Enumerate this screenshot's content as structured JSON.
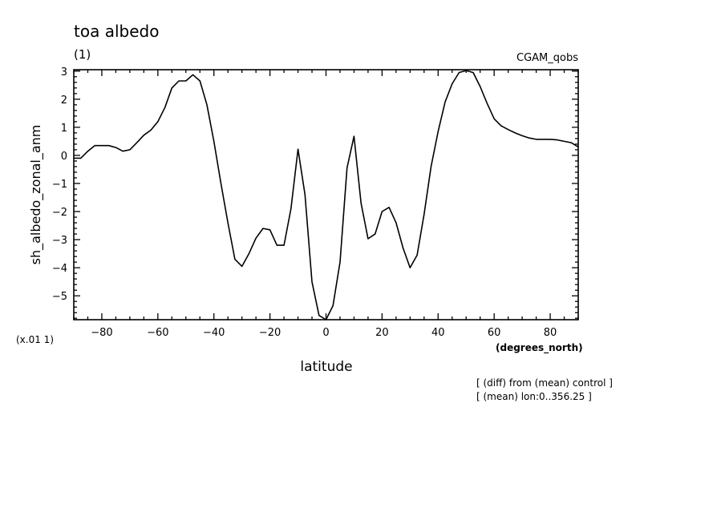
{
  "chart_data": {
    "type": "line",
    "title": "toa albedo",
    "subtitle": "(1)",
    "dataset_label": "CGAM_qobs",
    "xlabel": "latitude",
    "x_units": "(degrees_north)",
    "ylabel": "sh_albedo_zonal_anm",
    "y_scale_note": "(x.01 1)",
    "xlim": [
      -90,
      90
    ],
    "ylim": [
      -5.85,
      3.05
    ],
    "x_ticks": [
      -80,
      -60,
      -40,
      -20,
      0,
      20,
      40,
      60,
      80
    ],
    "x_tick_labels": [
      "−80",
      "−60",
      "−40",
      "−20",
      "0",
      "20",
      "40",
      "60",
      "80"
    ],
    "y_ticks": [
      3,
      2,
      1,
      0,
      -1,
      -2,
      -3,
      -4,
      -5
    ],
    "y_tick_labels": [
      "3",
      "2",
      "1",
      "0",
      "−1",
      "−2",
      "−3",
      "−4",
      "−5"
    ],
    "grid": false,
    "footnotes": [
      "[ (diff) from (mean) control ]",
      "[ (mean) lon:0..356.25 ]"
    ],
    "series": [
      {
        "color": "#000000",
        "x": [
          -90,
          -87.5,
          -85,
          -82.5,
          -80,
          -77.5,
          -75,
          -72.5,
          -70,
          -67.5,
          -65,
          -62.5,
          -60,
          -57.5,
          -55,
          -52.5,
          -50,
          -47.5,
          -45,
          -42.5,
          -40,
          -37.5,
          -35,
          -32.5,
          -30,
          -27.5,
          -25,
          -22.5,
          -20,
          -17.5,
          -15,
          -12.5,
          -10,
          -7.5,
          -5,
          -2.5,
          0,
          2.5,
          5,
          7.5,
          10,
          12.5,
          15,
          17.5,
          20,
          22.5,
          25,
          27.5,
          30,
          32.5,
          35,
          37.5,
          40,
          42.5,
          45,
          47.5,
          50,
          52.5,
          55,
          57.5,
          60,
          62.5,
          65,
          67.5,
          70,
          72.5,
          75,
          77.5,
          80,
          82.5,
          85,
          87.5,
          90
        ],
        "y": [
          -0.1,
          -0.1,
          0.15,
          0.35,
          0.35,
          0.35,
          0.28,
          0.15,
          0.2,
          0.45,
          0.72,
          0.9,
          1.2,
          1.7,
          2.4,
          2.65,
          2.65,
          2.87,
          2.65,
          1.8,
          0.5,
          -1.0,
          -2.4,
          -3.7,
          -3.95,
          -3.5,
          -2.95,
          -2.6,
          -2.65,
          -3.2,
          -3.2,
          -1.9,
          0.22,
          -1.4,
          -4.5,
          -5.7,
          -5.85,
          -5.35,
          -3.8,
          -0.45,
          0.68,
          -1.7,
          -2.97,
          -2.8,
          -2.0,
          -1.85,
          -2.4,
          -3.3,
          -4.0,
          -3.55,
          -2.1,
          -0.4,
          0.85,
          1.9,
          2.55,
          2.95,
          3.02,
          2.95,
          2.45,
          1.85,
          1.3,
          1.05,
          0.92,
          0.8,
          0.7,
          0.62,
          0.57,
          0.57,
          0.57,
          0.55,
          0.5,
          0.45,
          0.3
        ]
      }
    ]
  }
}
